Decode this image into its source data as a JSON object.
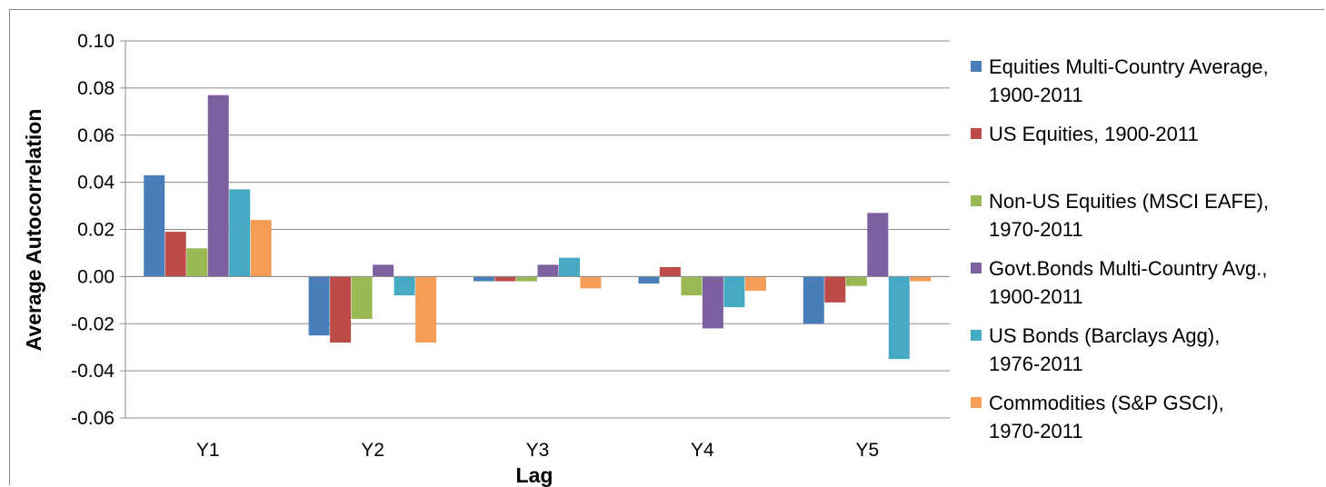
{
  "chart_data": {
    "type": "bar",
    "xlabel": "Lag",
    "ylabel": "Average Autocorrelation",
    "ylim": [
      -0.06,
      0.1
    ],
    "yticks": [
      0.1,
      0.08,
      0.06,
      0.04,
      0.02,
      0.0,
      -0.02,
      -0.04,
      -0.06
    ],
    "ytick_labels": [
      "0.10",
      "0.08",
      "0.06",
      "0.04",
      "0.02",
      "0.00",
      "-0.02",
      "-0.04",
      "-0.06"
    ],
    "categories": [
      "Y1",
      "Y2",
      "Y3",
      "Y4",
      "Y5"
    ],
    "grid": true,
    "legend_position": "right",
    "series": [
      {
        "name": "Equities Multi-Country Average,\n1900-2011",
        "color": "#4a7ebb",
        "values": [
          0.043,
          -0.025,
          -0.002,
          -0.003,
          -0.02
        ]
      },
      {
        "name": "US Equities, 1900-2011",
        "color": "#be4b48",
        "values": [
          0.019,
          -0.028,
          -0.002,
          0.004,
          -0.011
        ]
      },
      {
        "name": "Non-US Equities (MSCI EAFE),\n1970-2011",
        "color": "#98b954",
        "values": [
          0.012,
          -0.018,
          -0.002,
          -0.008,
          -0.004
        ]
      },
      {
        "name": "Govt.Bonds Multi-Country Avg.,\n1900-2011",
        "color": "#7d60a0",
        "values": [
          0.077,
          0.005,
          0.005,
          -0.022,
          0.027
        ]
      },
      {
        "name": "US Bonds (Barclays Agg),\n1976-2011",
        "color": "#46aac5",
        "values": [
          0.037,
          -0.008,
          0.008,
          -0.013,
          -0.035
        ]
      },
      {
        "name": "Commodities (S&P GSCI),\n1970-2011",
        "color": "#f59d56",
        "values": [
          0.024,
          -0.028,
          -0.005,
          -0.006,
          -0.002
        ]
      }
    ]
  }
}
